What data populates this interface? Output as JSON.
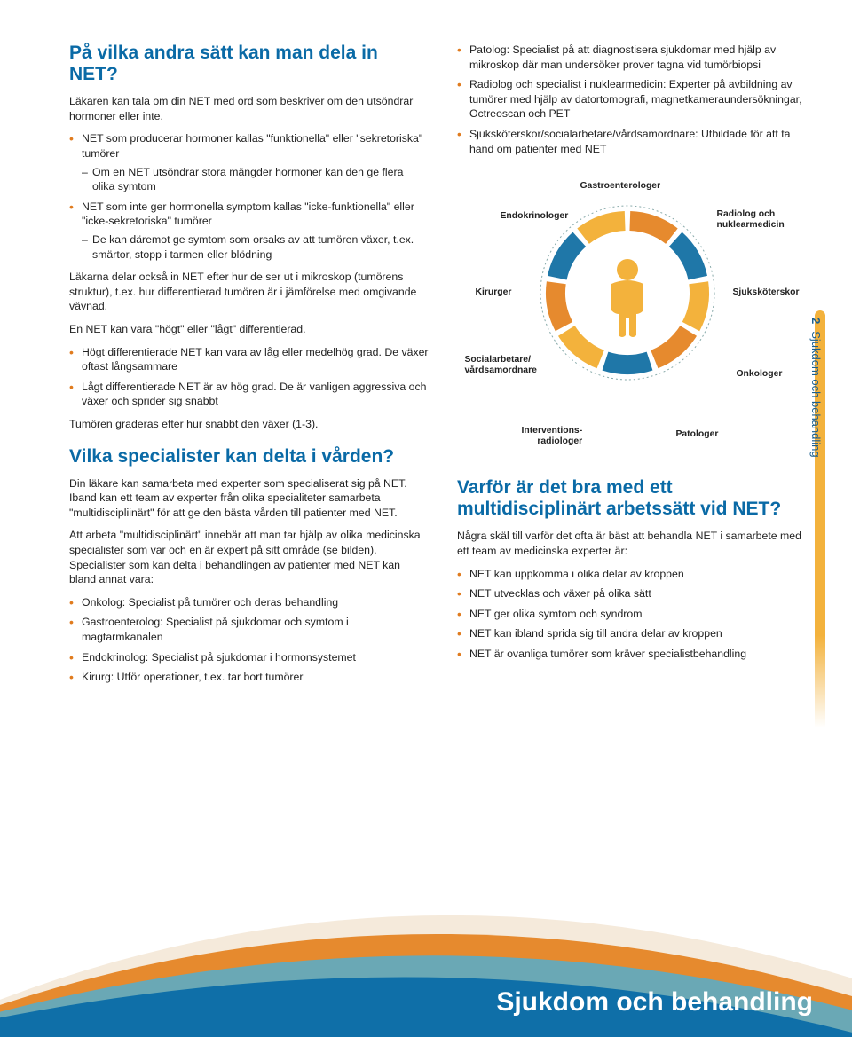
{
  "colors": {
    "heading": "#0a6aa6",
    "bullet": "#e07b1e",
    "tab_bar": "#f3b23c",
    "tab_text": "#1a5f8f",
    "footer_text": "#ffffff",
    "arcs": {
      "orange": "#e68a2e",
      "blue": "#0f6fa8",
      "teal": "#6aa8b5",
      "cream": "#f5eadb"
    }
  },
  "left": {
    "h1": "På vilka andra sätt kan man dela in NET?",
    "intro": "Läkaren kan tala om din NET med ord som beskriver om den utsöndrar hormoner eller inte.",
    "b1_main": "NET som producerar hormoner kallas \"funktionella\" eller \"sekretoriska\" tumörer",
    "b1_sub1": "Om en NET utsöndrar stora mängder hormoner kan den ge flera olika symtom",
    "b2_main": "NET som inte ger hormonella symptom kallas \"icke-funktionella\" eller \"icke-sekretoriska\" tumörer",
    "b2_sub1": "De kan däremot ge symtom som orsaks av att tumören växer, t.ex. smärtor, stopp i tarmen eller blödning",
    "p2": "Läkarna delar också in NET efter hur de ser ut i mikroskop (tumörens struktur), t.ex. hur differentierad tumören är i jämförelse med omgivande vävnad.",
    "p3": "En NET kan vara \"högt\" eller \"lågt\" differentierad.",
    "b3": "Högt differentierade NET kan vara av låg eller medelhög grad. De växer oftast långsammare",
    "b4": "Lågt differentierade NET är av hög grad. De är vanligen aggressiva och växer och sprider sig snabbt",
    "p4": "Tumören graderas efter hur snabbt den växer (1-3).",
    "h2": "Vilka specialister kan delta i vården?",
    "p5": "Din läkare kan samarbeta med experter som specialiserat sig på NET. Iband kan ett team av experter från olika specialiteter samarbeta \"multidiscipliinärt\" för att ge den bästa vården till patienter med NET.",
    "p6": "Att arbeta \"multidisciplinärt\" innebär att man tar hjälp av olika medicinska specialister som var och en är expert på sitt område (se bilden). Specialister som kan delta i behandlingen av patienter med NET kan bland annat vara:",
    "s1": "Onkolog: Specialist på tumörer och deras behandling",
    "s2": "Gastroenterolog: Specialist på sjukdomar och symtom i magtarmkanalen",
    "s3": "Endokrinolog: Specialist på sjukdomar i hormonsystemet",
    "s4": "Kirurg: Utför operationer, t.ex. tar bort tumörer"
  },
  "right": {
    "r1": "Patolog: Specialist på att diagnostisera sjukdomar med hjälp av mikroskop där man undersöker prover tagna vid tumörbiopsi",
    "r2": "Radiolog och specialist i nuklearmedicin: Experter på avbildning av tumörer med hjälp av datortomografi, magnetkameraundersökningar, Octreoscan och PET",
    "r3": "Sjuksköterskor/socialarbetare/vårdsamordnare: Utbildade för att ta hand om patienter med NET",
    "h3": "Varför är det bra med ett multidisciplinärt arbetssätt vid NET?",
    "p7": "Några skäl till varför det ofta är bäst att behandla NET i samarbete med ett team av medicinska experter är:",
    "w1": "NET kan uppkomma i olika delar av kroppen",
    "w2": "NET utvecklas och växer på olika sätt",
    "w3": "NET ger olika symtom och syndrom",
    "w4": "NET kan ibland sprida sig till andra delar av kroppen",
    "w5": "NET är ovanliga tumörer som kräver specialistbehandling"
  },
  "diagram": {
    "labels": {
      "gastro": "Gastroenterologer",
      "endo": "Endokrinologer",
      "radio": "Radiolog och\nnuklearmedicin",
      "kirurg": "Kirurger",
      "sjuk": "Sjuksköterskor",
      "soc": "Socialarbetare/\nvårdsamordnare",
      "onk": "Onkologer",
      "interv": "Interventions-\nradiologer",
      "pat": "Patologer"
    },
    "ring": {
      "outer_r": 92,
      "inner_r": 70,
      "segments": 9,
      "gap_deg": 4,
      "colors": [
        "#e68a2e",
        "#1f77a8",
        "#f3b23c",
        "#e68a2e",
        "#1f77a8",
        "#f3b23c",
        "#e68a2e",
        "#1f77a8",
        "#f3b23c"
      ],
      "bg": "#ffffff"
    },
    "person_color": "#f3b23c"
  },
  "side_tab": {
    "num": "2",
    "text": "Sjukdom och behandling"
  },
  "footer_title": "Sjukdom och behandling"
}
